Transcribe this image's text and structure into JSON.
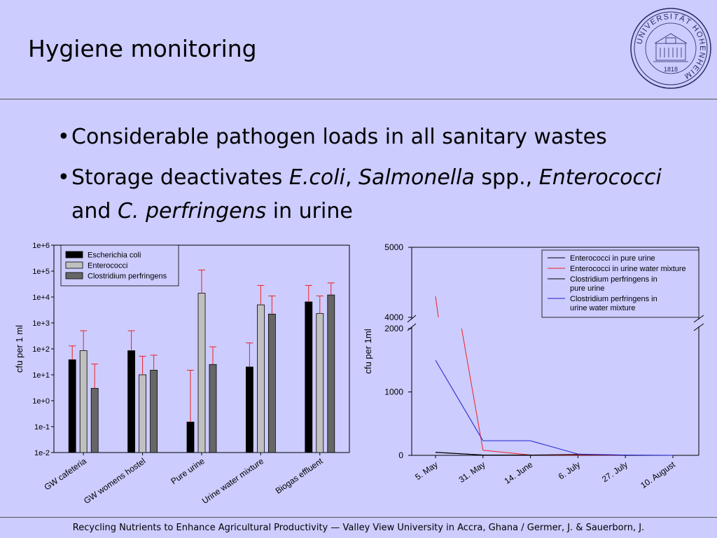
{
  "slide": {
    "title": "Hygiene monitoring",
    "bullets": [
      {
        "parts": [
          {
            "text": "Considerable pathogen loads in all sanitary wastes",
            "italic": false
          }
        ]
      },
      {
        "parts": [
          {
            "text": "Storage deactivates ",
            "italic": false
          },
          {
            "text": "E.coli",
            "italic": true
          },
          {
            "text": ", ",
            "italic": false
          },
          {
            "text": "Salmonella",
            "italic": true
          },
          {
            "text": " spp., ",
            "italic": false
          },
          {
            "text": "Enterococci",
            "italic": true
          },
          {
            "text": " and ",
            "italic": false
          },
          {
            "text": "C. perfringens",
            "italic": true
          },
          {
            "text": " in urine",
            "italic": false
          }
        ]
      }
    ],
    "footer": "Recycling Nutrients to Enhance Agricultural Productivity — Valley View University in Accra, Ghana / Germer, J. & Sauerborn, J.",
    "logo": {
      "ring_text": "UNIVERSITÄT HOHENHEIM",
      "year": "1818",
      "icon": "university-seal-icon",
      "color": "#2a2a6a"
    }
  },
  "chart_data": [
    {
      "type": "bar",
      "yscale": "log",
      "ylabel": "cfu per 1 ml",
      "xlabel": "",
      "ylim": [
        0.01,
        1000000
      ],
      "yticks": [
        "1e-2",
        "1e-1",
        "1e+0",
        "1e+1",
        "1e+2",
        "1e+3",
        "1e+4",
        "1e+5",
        "1e+6"
      ],
      "categories": [
        "GW cafeteria",
        "GW womens hostel",
        "Pure urine",
        "Urine water mixture",
        "Biogas effluent"
      ],
      "legend_position": "top-left",
      "error_bar_color": "#ee2222",
      "series": [
        {
          "name": "Escherichia coli",
          "color": "#000000",
          "values": [
            38,
            85,
            0.15,
            20,
            6500
          ],
          "errors_upper": [
            130,
            500,
            15,
            170,
            28000
          ]
        },
        {
          "name": "Enterococci",
          "color": "#c0c0c0",
          "values": [
            85,
            10,
            14000,
            5000,
            2300
          ],
          "errors_upper": [
            500,
            52,
            110000,
            28000,
            11000
          ]
        },
        {
          "name": "Clostridium perfringens",
          "color": "#666666",
          "values": [
            3,
            15,
            25,
            2200,
            12000
          ],
          "errors_upper": [
            26,
            57,
            120,
            11000,
            35000
          ]
        }
      ]
    },
    {
      "type": "line",
      "ylabel": "cfu per 1ml",
      "xlabel": "",
      "broken_axis": true,
      "ylim_lower": [
        0,
        2000
      ],
      "ylim_upper": [
        4000,
        5000
      ],
      "yticks": [
        "0",
        "1000",
        "2000",
        "4000",
        "5000"
      ],
      "x": [
        "5. May",
        "31. May",
        "14. June",
        "6. July",
        "27. July",
        "10. August"
      ],
      "legend_position": "top-right",
      "series": [
        {
          "name": "Enterococci in pure urine",
          "color": "#000000",
          "values": [
            45,
            5,
            0,
            0,
            0,
            0
          ]
        },
        {
          "name": "Enterococci in urine water mixture",
          "color": "#ee2222",
          "values": [
            4300,
            80,
            5,
            5,
            0,
            0
          ]
        },
        {
          "name": "Clostridium perfringens in\npure urine",
          "color": "#000000",
          "values": [
            50,
            5,
            5,
            15,
            0,
            0
          ]
        },
        {
          "name": "Clostridium perfringens in\nurine water mixture",
          "color": "#2222cc",
          "values": [
            1500,
            230,
            230,
            20,
            5,
            0
          ]
        }
      ]
    }
  ]
}
